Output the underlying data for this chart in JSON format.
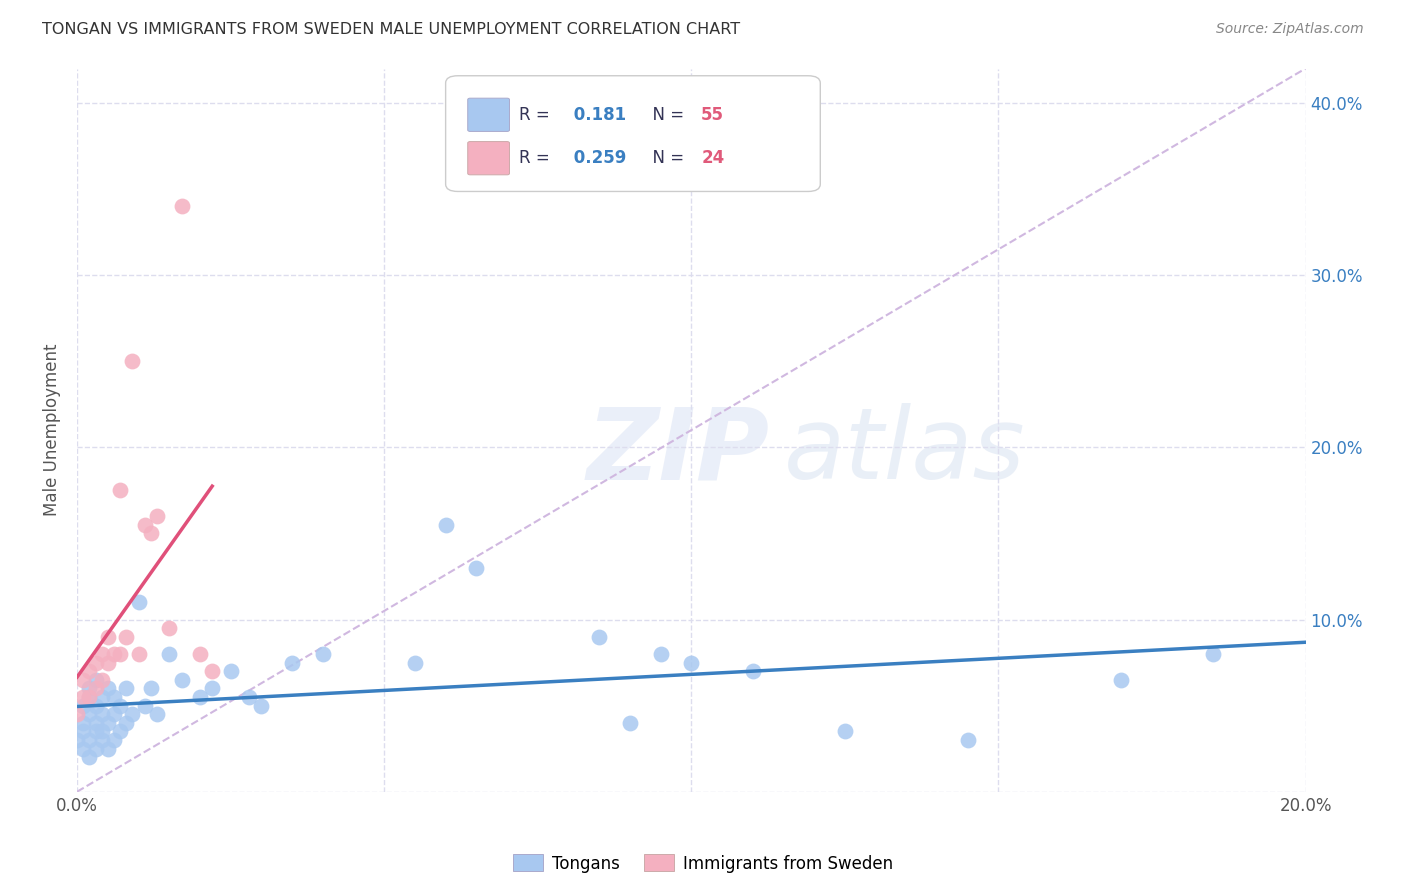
{
  "title": "TONGAN VS IMMIGRANTS FROM SWEDEN MALE UNEMPLOYMENT CORRELATION CHART",
  "source": "Source: ZipAtlas.com",
  "ylabel": "Male Unemployment",
  "xlim": [
    0.0,
    0.2
  ],
  "ylim": [
    0.0,
    0.42
  ],
  "blue_R": 0.181,
  "blue_N": 55,
  "pink_R": 0.259,
  "pink_N": 24,
  "blue_color": "#a8c8f0",
  "pink_color": "#f4b0c0",
  "blue_line_color": "#3a7fc1",
  "pink_line_color": "#e0507a",
  "diag_line_color": "#d0b8e0",
  "text_color": "#555577",
  "legend_R_color": "#3a7fc1",
  "legend_N_color": "#e05a7a",
  "title_color": "#333333",
  "source_color": "#888888",
  "grid_color": "#ddddee",
  "blue_x": [
    0.0,
    0.001,
    0.001,
    0.001,
    0.001,
    0.002,
    0.002,
    0.002,
    0.002,
    0.002,
    0.003,
    0.003,
    0.003,
    0.003,
    0.003,
    0.004,
    0.004,
    0.004,
    0.004,
    0.005,
    0.005,
    0.005,
    0.006,
    0.006,
    0.006,
    0.007,
    0.007,
    0.008,
    0.008,
    0.009,
    0.01,
    0.011,
    0.012,
    0.013,
    0.015,
    0.017,
    0.02,
    0.022,
    0.025,
    0.028,
    0.03,
    0.035,
    0.04,
    0.055,
    0.06,
    0.065,
    0.085,
    0.09,
    0.095,
    0.1,
    0.11,
    0.125,
    0.145,
    0.17,
    0.185
  ],
  "blue_y": [
    0.03,
    0.025,
    0.04,
    0.035,
    0.05,
    0.02,
    0.03,
    0.045,
    0.055,
    0.06,
    0.025,
    0.035,
    0.04,
    0.05,
    0.065,
    0.03,
    0.035,
    0.045,
    0.055,
    0.025,
    0.04,
    0.06,
    0.03,
    0.045,
    0.055,
    0.035,
    0.05,
    0.04,
    0.06,
    0.045,
    0.11,
    0.05,
    0.06,
    0.045,
    0.08,
    0.065,
    0.055,
    0.06,
    0.07,
    0.055,
    0.05,
    0.075,
    0.08,
    0.075,
    0.155,
    0.13,
    0.09,
    0.04,
    0.08,
    0.075,
    0.07,
    0.035,
    0.03,
    0.065,
    0.08
  ],
  "pink_x": [
    0.0,
    0.001,
    0.001,
    0.002,
    0.002,
    0.003,
    0.003,
    0.004,
    0.004,
    0.005,
    0.005,
    0.006,
    0.007,
    0.007,
    0.008,
    0.009,
    0.01,
    0.011,
    0.012,
    0.013,
    0.015,
    0.017,
    0.02,
    0.022
  ],
  "pink_y": [
    0.045,
    0.055,
    0.065,
    0.055,
    0.07,
    0.06,
    0.075,
    0.065,
    0.08,
    0.075,
    0.09,
    0.08,
    0.175,
    0.08,
    0.09,
    0.25,
    0.08,
    0.155,
    0.15,
    0.16,
    0.095,
    0.34,
    0.08,
    0.07
  ]
}
